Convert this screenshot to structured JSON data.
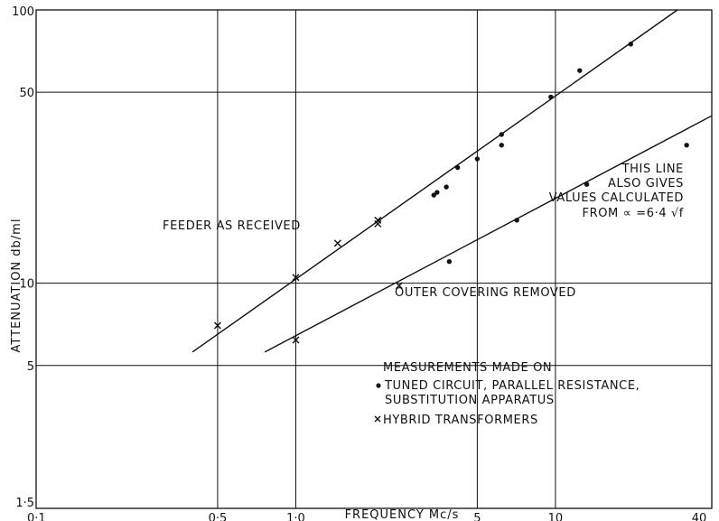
{
  "chart_data": {
    "type": "scatter",
    "title": "",
    "xlabel": "FREQUENCY Mc/s",
    "ylabel": "ATTENUATION db/ml",
    "x_scale": "log",
    "y_scale": "log",
    "xlim": [
      0.1,
      40
    ],
    "ylim": [
      1.5,
      100
    ],
    "grid": true,
    "x_ticks": [
      {
        "value": 0.1,
        "label": "0·1"
      },
      {
        "value": 0.5,
        "label": "0·5"
      },
      {
        "value": 1,
        "label": "1·0"
      },
      {
        "value": 5,
        "label": "5"
      },
      {
        "value": 10,
        "label": "10"
      },
      {
        "value": 40,
        "label": "40"
      }
    ],
    "y_ticks": [
      {
        "value": 1.5,
        "label": "1·5"
      },
      {
        "value": 5,
        "label": "5"
      },
      {
        "value": 10,
        "label": "10"
      },
      {
        "value": 50,
        "label": "50"
      },
      {
        "value": 100,
        "label": "100"
      }
    ],
    "series": [
      {
        "name": "TUNED CIRCUIT, PARALLEL RESISTANCE, SUBSTITUTION APPARATUS",
        "marker": "dot",
        "points": [
          [
            3.4,
            21.0
          ],
          [
            3.5,
            21.5
          ],
          [
            3.8,
            22.5
          ],
          [
            4.2,
            26.5
          ],
          [
            5.0,
            28.5
          ],
          [
            6.2,
            35.0
          ],
          [
            6.2,
            32.0
          ],
          [
            9.6,
            48.0
          ],
          [
            12.4,
            60.0
          ],
          [
            19.5,
            75.0
          ],
          [
            3.9,
            12.0
          ],
          [
            7.1,
            17.0
          ],
          [
            13.2,
            23.0
          ],
          [
            32.0,
            32.0
          ]
        ]
      },
      {
        "name": "HYBRID TRANSFORMERS",
        "marker": "x",
        "points": [
          [
            0.5,
            7.0
          ],
          [
            1.0,
            10.5
          ],
          [
            1.45,
            14.0
          ],
          [
            2.07,
            16.5
          ],
          [
            2.07,
            17.0
          ],
          [
            1.0,
            6.2
          ],
          [
            2.5,
            9.8
          ]
        ]
      }
    ],
    "lines": [
      {
        "name": "FEEDER AS RECEIVED",
        "from": [
          0.4,
          5.6
        ],
        "to": [
          29.5,
          100
        ]
      },
      {
        "name": "OUTER COVERING REMOVED",
        "from": [
          0.76,
          5.6
        ],
        "to": [
          40,
          41
        ]
      }
    ],
    "annotations": {
      "feeder_label": "FEEDER AS RECEIVED",
      "outer_label": "OUTER COVERING REMOVED",
      "this_line": [
        "THIS LINE",
        "ALSO GIVES",
        "VALUES CALCULATED",
        "FROM ∝ =6·4 √f"
      ],
      "legend_title": "MEASUREMENTS MADE ON",
      "legend_dot": [
        "TUNED CIRCUIT, PARALLEL RESISTANCE,",
        "SUBSTITUTION APPARATUS"
      ],
      "legend_cross": "HYBRID TRANSFORMERS"
    }
  }
}
